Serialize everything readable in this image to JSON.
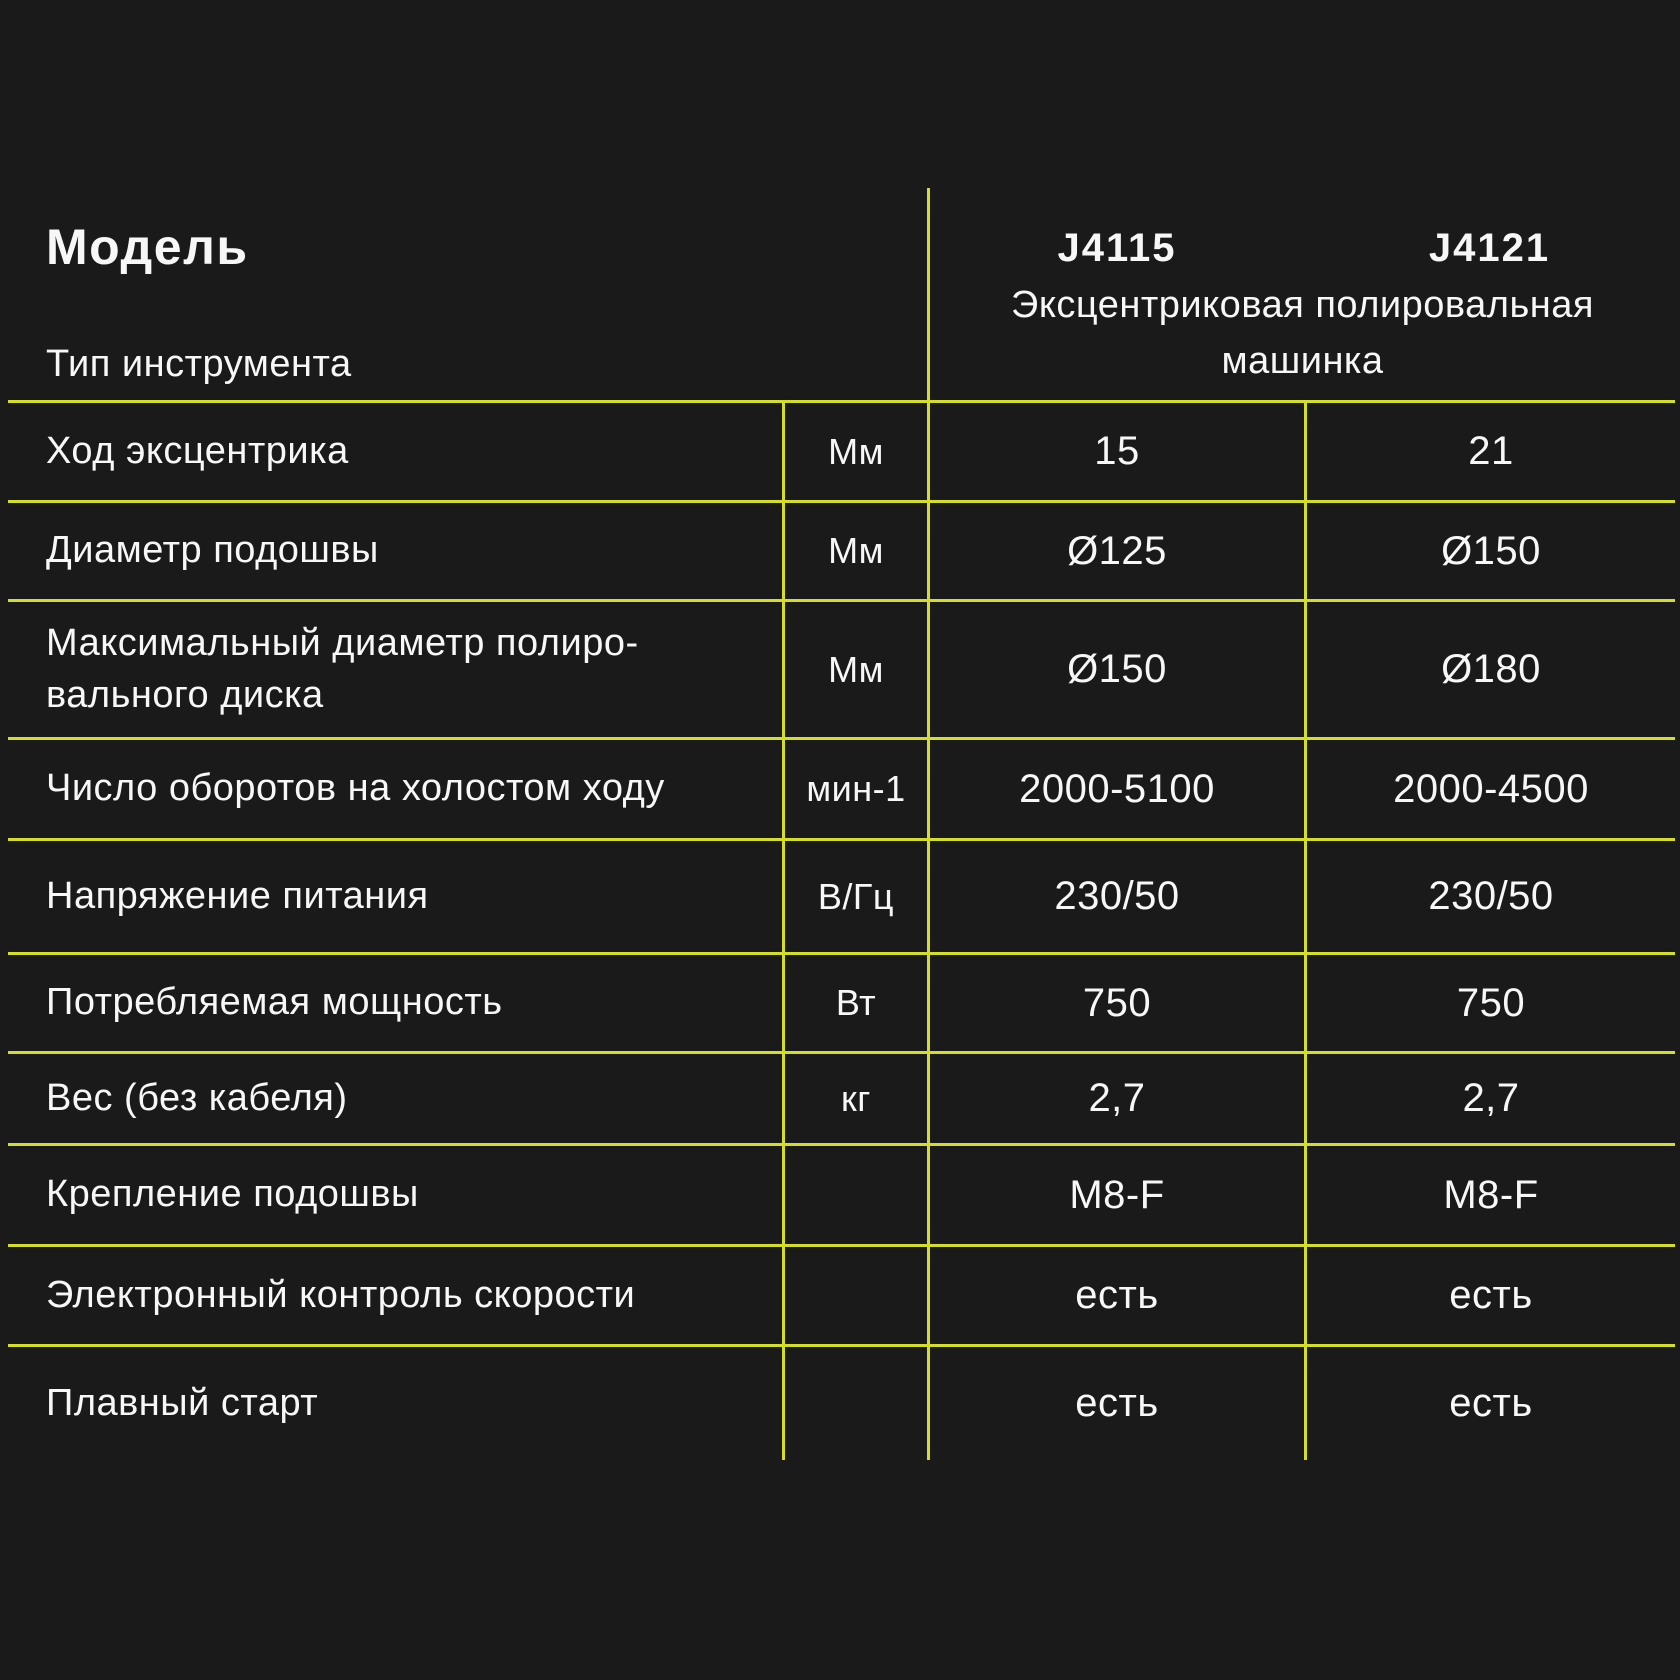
{
  "background_color": "#1a1a1a",
  "grid_color": "#d5de27",
  "text_color": "#f7f7f7",
  "header": {
    "model_label": "Модель",
    "tool_type_label": "Тип инструмента",
    "model_1": "J4115",
    "model_2": "J4121",
    "tool_type_value": "Эксцентриковая полировальная\nмашинка"
  },
  "table": {
    "rows": [
      {
        "label": "Ход эксцентрика",
        "unit": "Мм",
        "j4115": "15",
        "j4121": "21"
      },
      {
        "label": "Диаметр подошвы",
        "unit": "Мм",
        "j4115": "Ø125",
        "j4121": "Ø150"
      },
      {
        "label": "Максимальный диаметр полиро-\nвального диска",
        "unit": "Мм",
        "j4115": "Ø150",
        "j4121": "Ø180"
      },
      {
        "label": "Число оборотов на холостом ходу",
        "unit": "мин-1",
        "j4115": "2000-5100",
        "j4121": "2000-4500"
      },
      {
        "label": "Напряжение питания",
        "unit": "В/Гц",
        "j4115": "230/50",
        "j4121": "230/50"
      },
      {
        "label": "Потребляемая мощность",
        "unit": "Вт",
        "j4115": "750",
        "j4121": "750"
      },
      {
        "label": "Вес (без кабеля)",
        "unit": "кг",
        "j4115": "2,7",
        "j4121": "2,7"
      },
      {
        "label": "Крепление подошвы",
        "unit": "",
        "j4115": "M8-F",
        "j4121": "M8-F"
      },
      {
        "label": "Электронный контроль скорости",
        "unit": "",
        "j4115": "есть",
        "j4121": "есть"
      },
      {
        "label": "Плавный старт",
        "unit": "",
        "j4115": "есть",
        "j4121": "есть"
      }
    ]
  }
}
